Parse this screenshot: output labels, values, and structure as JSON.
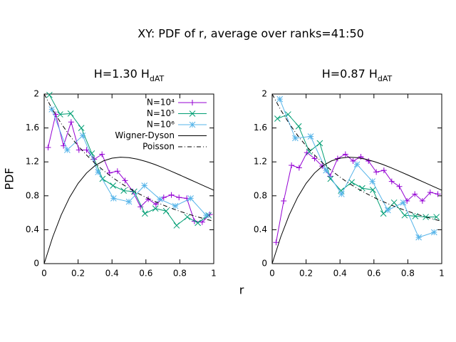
{
  "title": "XY: PDF of r, average over ranks=41:50",
  "x_label": "r",
  "y_label": "PDF",
  "chart_data": [
    {
      "type": "line",
      "title": [
        "H=1.30 H",
        "dAT"
      ],
      "xlim": [
        0,
        1
      ],
      "ylim": [
        0,
        2
      ],
      "xticks": [
        0,
        0.2,
        0.4,
        0.6,
        0.8,
        1
      ],
      "yticks": [
        0,
        0.4,
        0.8,
        1.2,
        1.6,
        2
      ],
      "legend": "top-right",
      "series": [
        {
          "name": "N=10⁴",
          "color": "#9400d3",
          "marker": "plus",
          "x": [
            0.023,
            0.068,
            0.114,
            0.159,
            0.205,
            0.25,
            0.295,
            0.341,
            0.386,
            0.432,
            0.477,
            0.523,
            0.568,
            0.614,
            0.659,
            0.705,
            0.75,
            0.795,
            0.841,
            0.886,
            0.932,
            0.977
          ],
          "values": [
            1.37,
            1.76,
            1.39,
            1.67,
            1.34,
            1.34,
            1.23,
            1.29,
            1.07,
            1.09,
            0.98,
            0.85,
            0.67,
            0.76,
            0.7,
            0.78,
            0.81,
            0.78,
            0.77,
            0.5,
            0.49,
            0.58
          ]
        },
        {
          "name": "N=10⁵",
          "color": "#009e73",
          "marker": "cross",
          "x": [
            0.031,
            0.094,
            0.156,
            0.219,
            0.281,
            0.344,
            0.406,
            0.469,
            0.531,
            0.594,
            0.656,
            0.719,
            0.781,
            0.844,
            0.906,
            0.969
          ],
          "values": [
            1.99,
            1.76,
            1.77,
            1.6,
            1.3,
            1.0,
            0.92,
            0.86,
            0.85,
            0.59,
            0.65,
            0.62,
            0.45,
            0.55,
            0.48,
            0.57
          ]
        },
        {
          "name": "N=10⁶",
          "color": "#56b4e9",
          "marker": "star",
          "x": [
            0.045,
            0.136,
            0.227,
            0.318,
            0.409,
            0.5,
            0.591,
            0.682,
            0.773,
            0.864,
            0.955
          ],
          "values": [
            1.82,
            1.34,
            1.51,
            1.08,
            0.77,
            0.73,
            0.92,
            0.76,
            0.68,
            0.77,
            0.57
          ]
        },
        {
          "name": "Wigner-Dyson",
          "color": "#000000",
          "dash": "none",
          "x": [
            0,
            0.05,
            0.1,
            0.15,
            0.2,
            0.25,
            0.3,
            0.35,
            0.4,
            0.45,
            0.5,
            0.55,
            0.6,
            0.65,
            0.7,
            0.75,
            0.8,
            0.85,
            0.9,
            0.95,
            1
          ],
          "values": [
            0,
            0.312,
            0.572,
            0.782,
            0.946,
            1.069,
            1.156,
            1.212,
            1.244,
            1.255,
            1.25,
            1.232,
            1.205,
            1.171,
            1.132,
            1.089,
            1.045,
            1.0,
            0.955,
            0.91,
            0.866
          ]
        },
        {
          "name": "Poisson",
          "color": "#000000",
          "dash": "6 3 1 3",
          "x": [
            0,
            0.05,
            0.1,
            0.15,
            0.2,
            0.25,
            0.3,
            0.35,
            0.4,
            0.45,
            0.5,
            0.55,
            0.6,
            0.65,
            0.7,
            0.75,
            0.8,
            0.85,
            0.9,
            0.95,
            1
          ],
          "values": [
            2,
            1.814,
            1.653,
            1.512,
            1.389,
            1.28,
            1.183,
            1.097,
            1.02,
            0.951,
            0.889,
            0.833,
            0.781,
            0.735,
            0.692,
            0.653,
            0.617,
            0.584,
            0.554,
            0.526,
            0.5
          ]
        }
      ]
    },
    {
      "type": "line",
      "title": [
        "H=0.87 H",
        "dAT"
      ],
      "xlim": [
        0,
        1
      ],
      "ylim": [
        0,
        2
      ],
      "xticks": [
        0,
        0.2,
        0.4,
        0.6,
        0.8,
        1
      ],
      "yticks": [
        0,
        0.4,
        0.8,
        1.2,
        1.6,
        2
      ],
      "series": [
        {
          "color": "#9400d3",
          "marker": "plus",
          "x": [
            0.023,
            0.068,
            0.114,
            0.159,
            0.205,
            0.25,
            0.295,
            0.341,
            0.386,
            0.432,
            0.477,
            0.523,
            0.568,
            0.614,
            0.659,
            0.705,
            0.75,
            0.795,
            0.841,
            0.886,
            0.932,
            0.977
          ],
          "values": [
            0.25,
            0.74,
            1.16,
            1.13,
            1.31,
            1.24,
            1.15,
            1.03,
            1.24,
            1.29,
            1.21,
            1.26,
            1.21,
            1.08,
            1.1,
            0.97,
            0.91,
            0.74,
            0.82,
            0.74,
            0.84,
            0.82
          ]
        },
        {
          "color": "#009e73",
          "marker": "cross",
          "x": [
            0.031,
            0.094,
            0.156,
            0.219,
            0.281,
            0.344,
            0.406,
            0.469,
            0.531,
            0.594,
            0.656,
            0.719,
            0.781,
            0.844,
            0.906,
            0.969
          ],
          "values": [
            1.71,
            1.76,
            1.62,
            1.32,
            1.42,
            1.0,
            0.86,
            0.96,
            0.89,
            0.87,
            0.59,
            0.72,
            0.57,
            0.56,
            0.55,
            0.55
          ]
        },
        {
          "color": "#56b4e9",
          "marker": "star",
          "x": [
            0.045,
            0.136,
            0.227,
            0.318,
            0.409,
            0.5,
            0.591,
            0.682,
            0.773,
            0.864,
            0.955
          ],
          "values": [
            1.94,
            1.48,
            1.5,
            1.1,
            0.82,
            1.17,
            0.97,
            0.63,
            0.72,
            0.31,
            0.37
          ]
        },
        {
          "color": "#000000",
          "dash": "none",
          "x": [
            0,
            0.05,
            0.1,
            0.15,
            0.2,
            0.25,
            0.3,
            0.35,
            0.4,
            0.45,
            0.5,
            0.55,
            0.6,
            0.65,
            0.7,
            0.75,
            0.8,
            0.85,
            0.9,
            0.95,
            1
          ],
          "values": [
            0,
            0.312,
            0.572,
            0.782,
            0.946,
            1.069,
            1.156,
            1.212,
            1.244,
            1.255,
            1.25,
            1.232,
            1.205,
            1.171,
            1.132,
            1.089,
            1.045,
            1.0,
            0.955,
            0.91,
            0.866
          ]
        },
        {
          "color": "#000000",
          "dash": "6 3 1 3",
          "x": [
            0,
            0.05,
            0.1,
            0.15,
            0.2,
            0.25,
            0.3,
            0.35,
            0.4,
            0.45,
            0.5,
            0.55,
            0.6,
            0.65,
            0.7,
            0.75,
            0.8,
            0.85,
            0.9,
            0.95,
            1
          ],
          "values": [
            2,
            1.814,
            1.653,
            1.512,
            1.389,
            1.28,
            1.183,
            1.097,
            1.02,
            0.951,
            0.889,
            0.833,
            0.781,
            0.735,
            0.692,
            0.653,
            0.617,
            0.584,
            0.554,
            0.526,
            0.5
          ]
        }
      ]
    }
  ]
}
